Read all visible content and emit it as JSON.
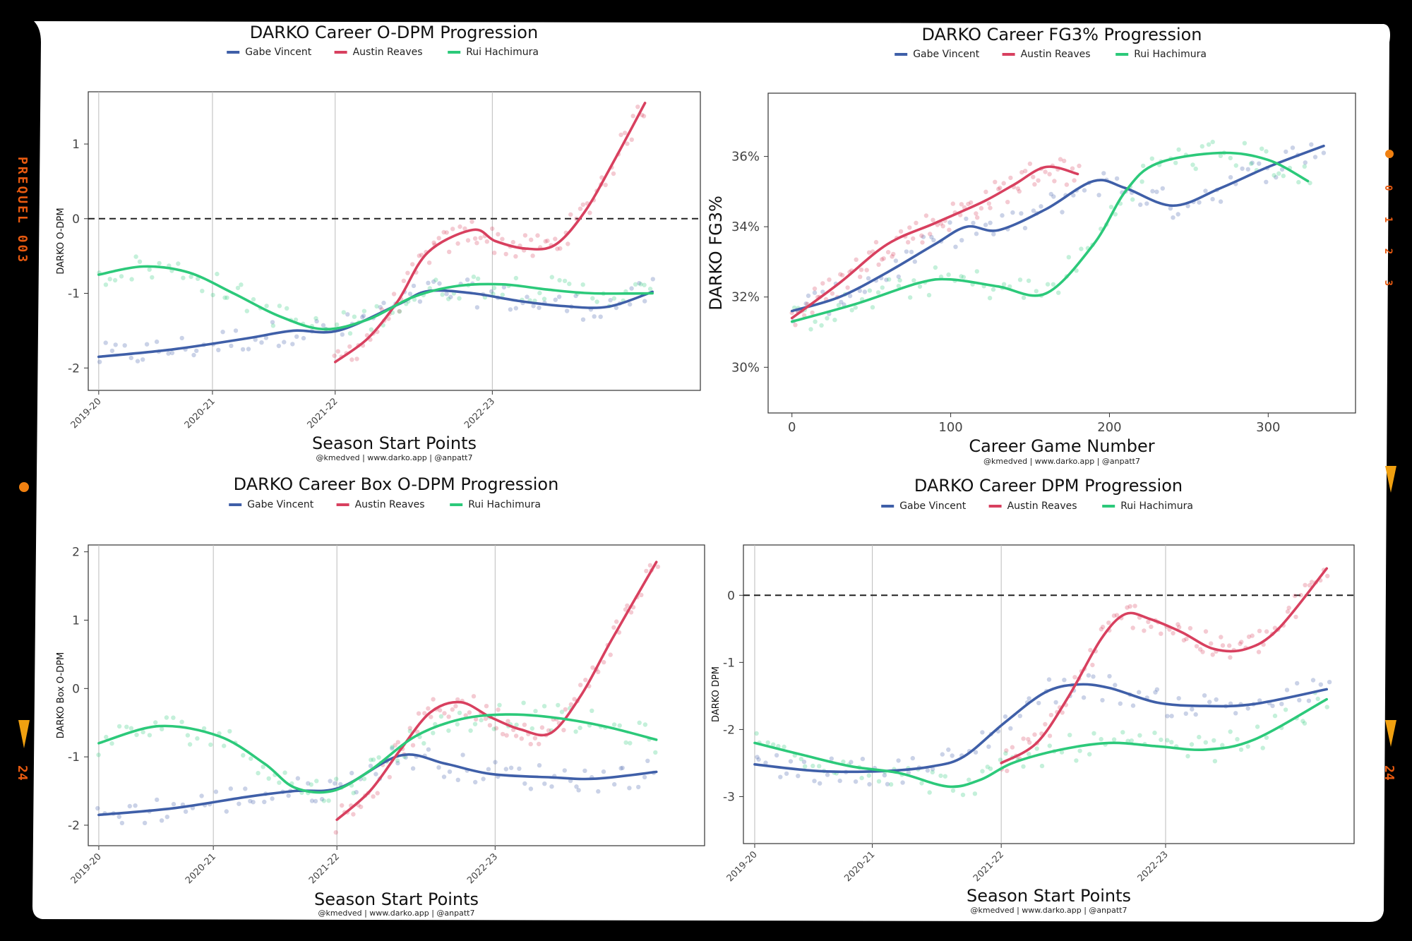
{
  "frame": {
    "left_label": "PREQUEL 003",
    "right_label": "0 1 2 3",
    "edge_number_left": "24",
    "edge_number_right": "24"
  },
  "colors": {
    "gabe": "#3f5fa8",
    "austin": "#d8405f",
    "rui": "#2cc97a",
    "frame_orange": "#e85a10"
  },
  "chart_data": [
    {
      "type": "line",
      "title": "DARKO Career O-DPM Progression",
      "xlabel": "Season Start Points",
      "ylabel": "DARKO O-DPM",
      "credit": "@kmedved | www.darko.app | @anpatt7",
      "xlim": [
        -0.07,
        4.02
      ],
      "ylim": [
        -2.3,
        1.7
      ],
      "yticks": [
        1,
        0,
        -1,
        -2
      ],
      "ytick_labels": [
        "1",
        "0",
        "-1",
        "-2"
      ],
      "xticks": [
        0,
        0.76,
        1.58,
        2.63
      ],
      "xtick_labels": [
        "2019-20",
        "2020-21",
        "2021-22",
        "2022-23"
      ],
      "zero_line": true,
      "legend": [
        {
          "name": "Gabe Vincent",
          "key": "gabe"
        },
        {
          "name": "Austin Reaves",
          "key": "austin"
        },
        {
          "name": "Rui Hachimura",
          "key": "rui"
        }
      ],
      "series": [
        {
          "name": "Gabe Vincent",
          "key": "gabe",
          "x": [
            0,
            0.5,
            1.0,
            1.3,
            1.6,
            2.0,
            2.2,
            2.5,
            2.8,
            3.1,
            3.4,
            3.7
          ],
          "y": [
            -1.85,
            -1.75,
            -1.6,
            -1.5,
            -1.5,
            -1.15,
            -0.97,
            -1.0,
            -1.1,
            -1.17,
            -1.18,
            -0.98
          ]
        },
        {
          "name": "Austin Reaves",
          "key": "austin",
          "x": [
            1.58,
            1.8,
            2.0,
            2.2,
            2.5,
            2.65,
            2.85,
            3.05,
            3.25,
            3.45,
            3.65
          ],
          "y": [
            -1.92,
            -1.6,
            -1.1,
            -0.45,
            -0.15,
            -0.3,
            -0.4,
            -0.35,
            0.1,
            0.8,
            1.55
          ]
        },
        {
          "name": "Rui Hachimura",
          "key": "rui",
          "x": [
            0,
            0.3,
            0.6,
            0.9,
            1.2,
            1.5,
            1.8,
            2.1,
            2.4,
            2.7,
            3.0,
            3.3,
            3.7
          ],
          "y": [
            -0.75,
            -0.64,
            -0.72,
            -1.0,
            -1.3,
            -1.48,
            -1.35,
            -1.05,
            -0.9,
            -0.88,
            -0.95,
            -1.0,
            -1.0
          ]
        }
      ]
    },
    {
      "type": "line",
      "title": "DARKO Career FG3% Progression",
      "xlabel": "Career Game Number",
      "ylabel": "DARKO FG3%",
      "credit": "@kmedved | www.darko.app | @anpatt7",
      "xlim": [
        -15,
        355
      ],
      "ylim": [
        28.7,
        37.8
      ],
      "yticks": [
        36,
        34,
        32,
        30
      ],
      "ytick_labels": [
        "36%",
        "34%",
        "32%",
        "30%"
      ],
      "xticks": [
        0,
        100,
        200,
        300
      ],
      "xtick_labels": [
        "0",
        "100",
        "200",
        "300"
      ],
      "zero_line": false,
      "legend": [
        {
          "name": "Gabe Vincent",
          "key": "gabe"
        },
        {
          "name": "Austin Reaves",
          "key": "austin"
        },
        {
          "name": "Rui Hachimura",
          "key": "rui"
        }
      ],
      "series": [
        {
          "name": "Gabe Vincent",
          "key": "gabe",
          "x": [
            0,
            30,
            60,
            90,
            110,
            130,
            160,
            190,
            210,
            240,
            270,
            300,
            335
          ],
          "y": [
            31.6,
            32.0,
            32.7,
            33.5,
            34.0,
            33.9,
            34.5,
            35.3,
            35.1,
            34.6,
            35.1,
            35.7,
            36.3
          ]
        },
        {
          "name": "Austin Reaves",
          "key": "austin",
          "x": [
            0,
            30,
            60,
            90,
            120,
            140,
            160,
            180
          ],
          "y": [
            31.4,
            32.4,
            33.5,
            34.1,
            34.7,
            35.2,
            35.7,
            35.5
          ]
        },
        {
          "name": "Rui Hachimura",
          "key": "rui",
          "x": [
            0,
            40,
            80,
            100,
            130,
            160,
            190,
            210,
            230,
            270,
            300,
            325
          ],
          "y": [
            31.3,
            31.8,
            32.4,
            32.5,
            32.3,
            32.1,
            33.5,
            35.0,
            35.8,
            36.1,
            35.9,
            35.3
          ]
        }
      ]
    },
    {
      "type": "line",
      "title": "DARKO Career Box O-DPM Progression",
      "xlabel": "Season Start Points",
      "ylabel": "DARKO Box O-DPM",
      "credit": "@kmedved | www.darko.app | @anpatt7",
      "xlim": [
        -0.07,
        4.02
      ],
      "ylim": [
        -2.3,
        2.1
      ],
      "yticks": [
        2,
        1,
        0,
        -1,
        -2
      ],
      "ytick_labels": [
        "2",
        "1",
        "0",
        "-1",
        "-2"
      ],
      "xticks": [
        0,
        0.76,
        1.58,
        2.63
      ],
      "xtick_labels": [
        "2019-20",
        "2020-21",
        "2021-22",
        "2022-23"
      ],
      "zero_line": false,
      "legend": [
        {
          "name": "Gabe Vincent",
          "key": "gabe"
        },
        {
          "name": "Austin Reaves",
          "key": "austin"
        },
        {
          "name": "Rui Hachimura",
          "key": "rui"
        }
      ],
      "series": [
        {
          "name": "Gabe Vincent",
          "key": "gabe",
          "x": [
            0,
            0.5,
            1.0,
            1.3,
            1.6,
            2.0,
            2.3,
            2.6,
            3.0,
            3.3,
            3.7
          ],
          "y": [
            -1.85,
            -1.75,
            -1.58,
            -1.5,
            -1.45,
            -0.98,
            -1.1,
            -1.25,
            -1.3,
            -1.32,
            -1.22
          ]
        },
        {
          "name": "Austin Reaves",
          "key": "austin",
          "x": [
            1.58,
            1.8,
            2.0,
            2.2,
            2.4,
            2.6,
            2.8,
            3.0,
            3.2,
            3.4,
            3.7
          ],
          "y": [
            -1.92,
            -1.5,
            -0.9,
            -0.35,
            -0.2,
            -0.42,
            -0.6,
            -0.65,
            -0.1,
            0.7,
            1.85
          ]
        },
        {
          "name": "Rui Hachimura",
          "key": "rui",
          "x": [
            0,
            0.4,
            0.8,
            1.1,
            1.3,
            1.55,
            1.8,
            2.1,
            2.4,
            2.7,
            3.0,
            3.35,
            3.7
          ],
          "y": [
            -0.8,
            -0.55,
            -0.7,
            -1.1,
            -1.45,
            -1.5,
            -1.2,
            -0.7,
            -0.45,
            -0.38,
            -0.42,
            -0.55,
            -0.75
          ]
        }
      ]
    },
    {
      "type": "line",
      "title": "DARKO Career DPM Progression",
      "xlabel": "Season Start Points",
      "ylabel": "DARKO DPM",
      "credit": "@kmedved | www.darko.app | @anpatt7",
      "xlim": [
        -0.07,
        3.72
      ],
      "ylim": [
        -3.7,
        0.75
      ],
      "yticks": [
        0,
        -1,
        -2,
        -3
      ],
      "ytick_labels": [
        "0",
        "-1",
        "-2",
        "-3"
      ],
      "xticks": [
        0,
        0.73,
        1.53,
        2.55
      ],
      "xtick_labels": [
        "2019-20",
        "2020-21",
        "2021-22",
        "2022-23"
      ],
      "zero_line": true,
      "legend": [
        {
          "name": "Gabe Vincent",
          "key": "gabe"
        },
        {
          "name": "Austin Reaves",
          "key": "austin"
        },
        {
          "name": "Rui Hachimura",
          "key": "rui"
        }
      ],
      "series": [
        {
          "name": "Gabe Vincent",
          "key": "gabe",
          "x": [
            0,
            0.4,
            0.8,
            1.1,
            1.3,
            1.55,
            1.8,
            2.0,
            2.2,
            2.5,
            2.8,
            3.1,
            3.55
          ],
          "y": [
            -2.52,
            -2.62,
            -2.62,
            -2.55,
            -2.4,
            -1.9,
            -1.45,
            -1.33,
            -1.38,
            -1.6,
            -1.65,
            -1.62,
            -1.4
          ]
        },
        {
          "name": "Austin Reaves",
          "key": "austin",
          "x": [
            1.53,
            1.75,
            1.95,
            2.15,
            2.3,
            2.45,
            2.65,
            2.85,
            3.05,
            3.25,
            3.55
          ],
          "y": [
            -2.5,
            -2.2,
            -1.5,
            -0.65,
            -0.28,
            -0.35,
            -0.55,
            -0.8,
            -0.8,
            -0.5,
            0.4
          ]
        },
        {
          "name": "Rui Hachimura",
          "key": "rui",
          "x": [
            0,
            0.3,
            0.6,
            0.9,
            1.2,
            1.4,
            1.6,
            1.9,
            2.2,
            2.5,
            2.8,
            3.1,
            3.55
          ],
          "y": [
            -2.2,
            -2.38,
            -2.55,
            -2.65,
            -2.85,
            -2.75,
            -2.5,
            -2.3,
            -2.2,
            -2.25,
            -2.3,
            -2.15,
            -1.55
          ]
        }
      ]
    }
  ]
}
